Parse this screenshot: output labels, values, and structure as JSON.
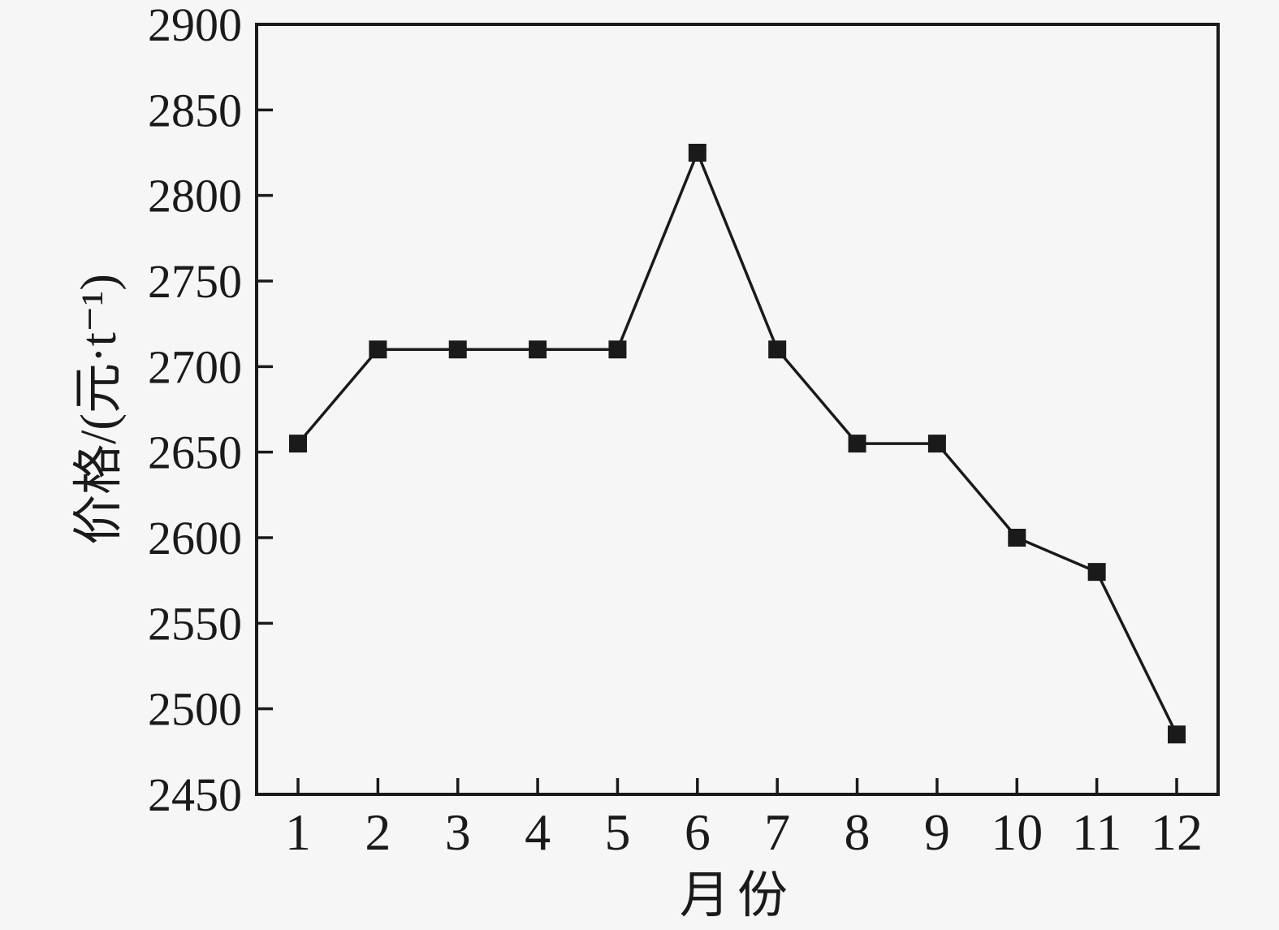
{
  "figure": {
    "background": "#f6f6f6",
    "ink_color": "#1a1a1a"
  },
  "chart_data": {
    "type": "line",
    "title": "",
    "xlabel": "月份",
    "ylabel": "价格/(元·t⁻¹)",
    "x": [
      1,
      2,
      3,
      4,
      5,
      6,
      7,
      8,
      9,
      10,
      11,
      12
    ],
    "xtick_labels": [
      "1",
      "2",
      "3",
      "4",
      "5",
      "6",
      "7",
      "8",
      "9",
      "10",
      "11",
      "12"
    ],
    "values": [
      2655,
      2710,
      2710,
      2710,
      2710,
      2825,
      2710,
      2655,
      2655,
      2600,
      2580,
      2485
    ],
    "ylim": [
      2450,
      2900
    ],
    "ytick_step": 50,
    "marker": "square",
    "line_color": "#1a1a1a",
    "marker_color": "#1a1a1a",
    "grid": false,
    "legend": "none"
  }
}
